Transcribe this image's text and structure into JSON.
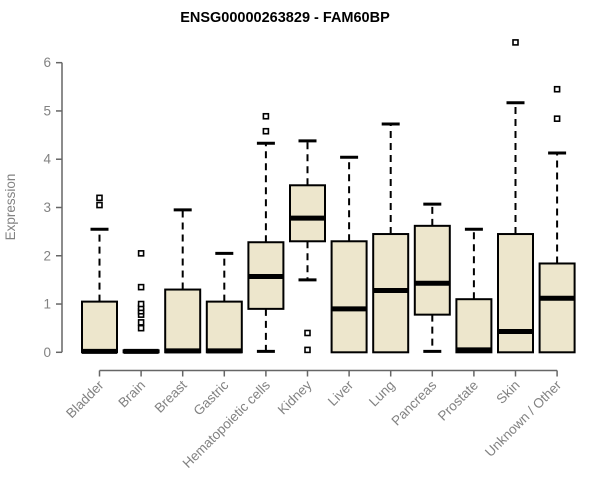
{
  "title": "ENSG00000263829 - FAM60BP",
  "chart_data": {
    "type": "boxplot",
    "title": "ENSG00000263829 - FAM60BP",
    "xlabel": "",
    "ylabel": "Expression",
    "ylim": [
      0,
      6.6
    ],
    "yticks": [
      0,
      1,
      2,
      3,
      4,
      5,
      6
    ],
    "grid": false,
    "legend": false,
    "colors": {
      "box_fill": "#EDE6CC",
      "box_border": "#000000",
      "median_line": "#000000",
      "whisker": "#000000",
      "axis_line": "#666666",
      "tick_label": "#828282",
      "title_text": "#000000",
      "background": "#ffffff"
    },
    "whisker_style": "dashed",
    "outlier_marker": "open-square",
    "categories": [
      "Bladder",
      "Brain",
      "Breast",
      "Gastric",
      "Hematopoietic cells",
      "Kidney",
      "Liver",
      "Lung",
      "Pancreas",
      "Prostate",
      "Skin",
      "Unknown / Other"
    ],
    "series": [
      {
        "category": "Bladder",
        "whisker_low": 0,
        "q1": 0,
        "median": 0.02,
        "q3": 1.05,
        "whisker_high": 2.55,
        "outliers": [
          3.05,
          3.2
        ]
      },
      {
        "category": "Brain",
        "whisker_low": 0,
        "q1": 0,
        "median": 0.02,
        "q3": 0.04,
        "whisker_high": 0.05,
        "outliers": [
          0.5,
          0.62,
          0.78,
          0.85,
          0.92,
          1.0,
          1.35,
          2.05
        ]
      },
      {
        "category": "Breast",
        "whisker_low": 0,
        "q1": 0,
        "median": 0.03,
        "q3": 1.3,
        "whisker_high": 2.95,
        "outliers": []
      },
      {
        "category": "Gastric",
        "whisker_low": 0,
        "q1": 0,
        "median": 0.03,
        "q3": 1.05,
        "whisker_high": 2.05,
        "outliers": []
      },
      {
        "category": "Hematopoietic cells",
        "whisker_low": 0.02,
        "q1": 0.9,
        "median": 1.57,
        "q3": 2.28,
        "whisker_high": 4.33,
        "outliers": [
          4.58,
          4.89
        ]
      },
      {
        "category": "Kidney",
        "whisker_low": 1.5,
        "q1": 2.3,
        "median": 2.78,
        "q3": 3.46,
        "whisker_high": 4.38,
        "outliers": [
          0.05,
          0.4
        ]
      },
      {
        "category": "Liver",
        "whisker_low": 0,
        "q1": 0,
        "median": 0.9,
        "q3": 2.3,
        "whisker_high": 4.04,
        "outliers": []
      },
      {
        "category": "Lung",
        "whisker_low": 0,
        "q1": 0,
        "median": 1.28,
        "q3": 2.45,
        "whisker_high": 4.73,
        "outliers": []
      },
      {
        "category": "Pancreas",
        "whisker_low": 0.02,
        "q1": 0.78,
        "median": 1.43,
        "q3": 2.62,
        "whisker_high": 3.07,
        "outliers": []
      },
      {
        "category": "Prostate",
        "whisker_low": 0,
        "q1": 0,
        "median": 0.05,
        "q3": 1.1,
        "whisker_high": 2.55,
        "outliers": []
      },
      {
        "category": "Skin",
        "whisker_low": 0,
        "q1": 0,
        "median": 0.43,
        "q3": 2.45,
        "whisker_high": 5.17,
        "outliers": [
          6.42
        ]
      },
      {
        "category": "Unknown / Other",
        "whisker_low": 0,
        "q1": 0,
        "median": 1.12,
        "q3": 1.84,
        "whisker_high": 4.13,
        "outliers": [
          4.84,
          5.45
        ]
      }
    ]
  }
}
